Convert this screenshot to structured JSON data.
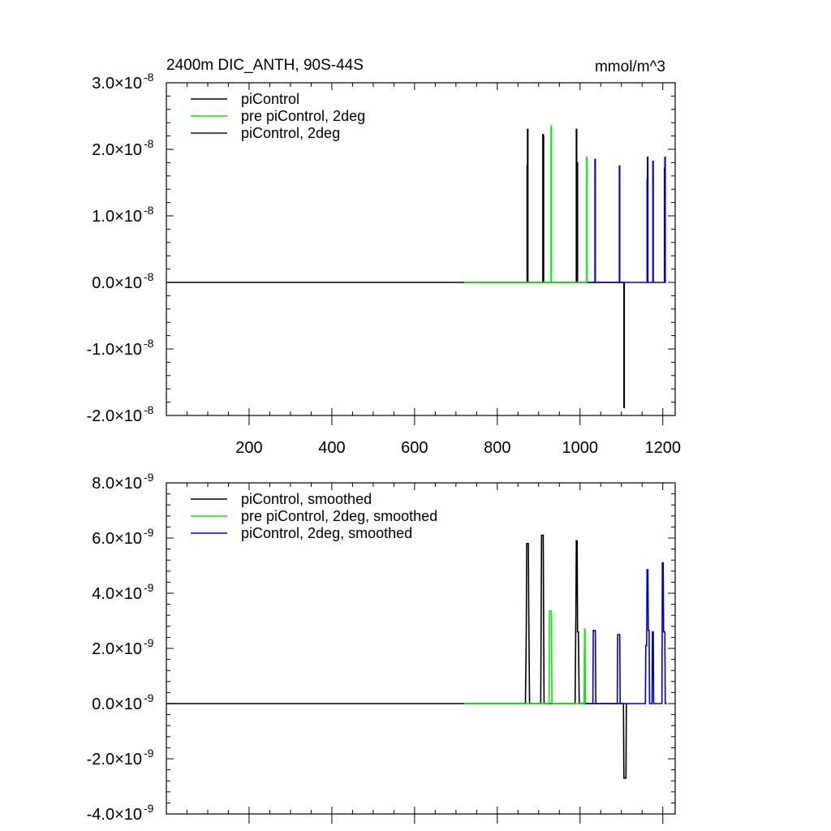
{
  "chart_data": [
    {
      "type": "line",
      "title_left": "2400m DIC_ANTH, 90S-44S",
      "title_right": "mmol/m^3",
      "xlim": [
        0,
        1230
      ],
      "ylim": [
        -2e-08,
        3e-08
      ],
      "x_tick_values": [
        200,
        400,
        600,
        800,
        1000,
        1200
      ],
      "x_tick_labels": [
        "200",
        "400",
        "600",
        "800",
        "1000",
        "1200"
      ],
      "y_tick_values": [
        -2e-08,
        -1e-08,
        0.0,
        1e-08,
        2e-08,
        3e-08
      ],
      "y_tick_mantissas": [
        "-2.0",
        "-1.0",
        "0.0",
        "1.0",
        "2.0",
        "3.0"
      ],
      "y_tick_times": "×10",
      "y_tick_exponent": "-8",
      "legend_position": "top-left",
      "series": [
        {
          "name": "piControl",
          "color": "#000000",
          "x": [
            0,
            872,
            872,
            873,
            873,
            874,
            874,
            910,
            910,
            911,
            911,
            912,
            912,
            991,
            991,
            992,
            992,
            993,
            993,
            994,
            994,
            1106,
            1106,
            1107,
            1107
          ],
          "y": [
            0,
            0,
            1.75e-08,
            1.75e-08,
            2.3e-08,
            2.3e-08,
            0,
            0,
            2.22e-08,
            2.22e-08,
            2.2e-08,
            2.2e-08,
            0,
            0,
            2.3e-08,
            2.3e-08,
            0,
            0,
            1.8e-08,
            1.8e-08,
            0,
            0,
            -1.88e-08,
            -1.88e-08,
            0
          ]
        },
        {
          "name": "pre piControl, 2deg",
          "color": "#00ee00",
          "x": [
            720,
            930,
            930,
            931,
            931,
            1016,
            1016,
            1017,
            1017,
            1020
          ],
          "y": [
            0,
            0,
            2.35e-08,
            2.35e-08,
            0,
            0,
            1.88e-08,
            1.88e-08,
            0,
            0
          ],
          "xlim_series": [
            720,
            1020
          ]
        },
        {
          "name": "piControl, 2deg",
          "color": "#0000cc",
          "x": [
            1018,
            1036,
            1036,
            1037,
            1037,
            1095,
            1095,
            1096,
            1096,
            1162,
            1162,
            1163,
            1163,
            1164,
            1164,
            1165,
            1165,
            1176,
            1176,
            1177,
            1177,
            1204,
            1204,
            1205,
            1205,
            1206,
            1206,
            1208
          ],
          "y": [
            0,
            0,
            1.85e-08,
            1.85e-08,
            0,
            0,
            1.75e-08,
            1.75e-08,
            0,
            0,
            1.55e-08,
            1.55e-08,
            1.88e-08,
            1.88e-08,
            0,
            0,
            0,
            0,
            1.82e-08,
            1.82e-08,
            0,
            0,
            1.72e-08,
            1.72e-08,
            1.88e-08,
            1.88e-08,
            0,
            0
          ]
        }
      ]
    },
    {
      "type": "line",
      "xlim": [
        0,
        1230
      ],
      "ylim": [
        -4e-09,
        8e-09
      ],
      "x_tick_values": [
        200,
        400,
        600,
        800,
        1000,
        1200
      ],
      "y_tick_values": [
        -4e-09,
        -2e-09,
        0.0,
        2e-09,
        4e-09,
        6e-09,
        8e-09
      ],
      "y_tick_mantissas": [
        "-4.0",
        "-2.0",
        "0.0",
        "2.0",
        "4.0",
        "6.0",
        "8.0"
      ],
      "y_tick_times": "×10",
      "y_tick_exponent": "-9",
      "legend_position": "top-left",
      "series": [
        {
          "name": "piControl, smoothed",
          "color": "#000000",
          "x": [
            0,
            868,
            870,
            871,
            875,
            876,
            878,
            905,
            907,
            911,
            913,
            988,
            990,
            991,
            993,
            994,
            996,
            998,
            1000,
            1105,
            1106,
            1111,
            1112
          ],
          "y": [
            0,
            0,
            2.5e-09,
            5.8e-09,
            5.8e-09,
            3.3e-09,
            0,
            0,
            6.1e-09,
            6.1e-09,
            0,
            0,
            3.3e-09,
            5.9e-09,
            5.9e-09,
            2.6e-09,
            2.6e-09,
            0,
            0,
            0,
            -2.7e-09,
            -2.7e-09,
            0
          ]
        },
        {
          "name": "pre piControl, 2deg, smoothed",
          "color": "#00ee00",
          "x": [
            720,
            925,
            926,
            931,
            932,
            1010,
            1011,
            1012,
            1013
          ],
          "y": [
            0,
            0,
            3.35e-09,
            3.35e-09,
            0,
            0,
            2.7e-09,
            2.7e-09,
            0
          ]
        },
        {
          "name": "piControl, 2deg, smoothed",
          "color": "#0000cc",
          "x": [
            1013,
            1031,
            1032,
            1037,
            1038,
            1090,
            1091,
            1096,
            1097,
            1158,
            1159,
            1161,
            1162,
            1164,
            1165,
            1167,
            1168,
            1174,
            1175,
            1177,
            1178,
            1198,
            1199,
            1201,
            1202,
            1205,
            1206,
            1210
          ],
          "y": [
            0,
            0,
            2.65e-09,
            2.65e-09,
            0,
            0,
            2.5e-09,
            2.5e-09,
            0,
            0,
            2.1e-09,
            2.1e-09,
            4.85e-09,
            4.85e-09,
            2.65e-09,
            2.65e-09,
            0,
            0,
            2.6e-09,
            2.6e-09,
            0,
            0,
            5.1e-09,
            5.1e-09,
            2.6e-09,
            2.6e-09,
            0,
            0
          ]
        }
      ]
    }
  ]
}
